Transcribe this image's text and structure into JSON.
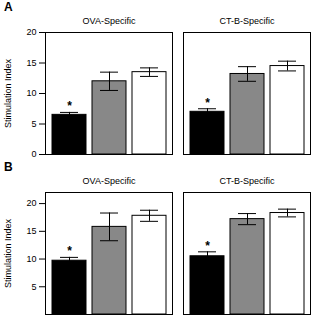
{
  "chart_data": [
    {
      "type": "bar",
      "title": "A",
      "ylabel": "Stimulation Index",
      "categories": [
        "OVA-Specific",
        "CT-B-Specific"
      ],
      "series": [
        {
          "color": "black",
          "values": [
            6.5,
            7.0
          ],
          "errors": [
            0.4,
            0.5
          ]
        },
        {
          "color": "#888888",
          "values": [
            12.0,
            13.2
          ],
          "errors": [
            1.5,
            1.2
          ]
        },
        {
          "color": "white",
          "values": [
            13.5,
            14.5
          ],
          "errors": [
            0.7,
            0.8
          ]
        }
      ],
      "annotations": [
        {
          "text": "*",
          "category": "OVA-Specific",
          "series": 0
        },
        {
          "text": "*",
          "category": "CT-B-Specific",
          "series": 0
        }
      ],
      "ylim": [
        0,
        20
      ],
      "yticks": [
        0,
        5,
        10,
        15,
        20
      ]
    },
    {
      "type": "bar",
      "title": "B",
      "ylabel": "Stimulation Index",
      "categories": [
        "OVA-Specific",
        "CT-B-Specific"
      ],
      "series": [
        {
          "color": "black",
          "values": [
            9.7,
            10.5
          ],
          "errors": [
            0.6,
            0.8
          ]
        },
        {
          "color": "#888888",
          "values": [
            15.8,
            17.2
          ],
          "errors": [
            2.5,
            1.0
          ]
        },
        {
          "color": "white",
          "values": [
            17.8,
            18.3
          ],
          "errors": [
            1.0,
            0.7
          ]
        }
      ],
      "annotations": [
        {
          "text": "*",
          "category": "OVA-Specific",
          "series": 0
        },
        {
          "text": "*",
          "category": "CT-B-Specific",
          "series": 0
        }
      ],
      "ylim": [
        0,
        22
      ],
      "yticks": [
        5,
        10,
        15,
        20
      ]
    }
  ]
}
